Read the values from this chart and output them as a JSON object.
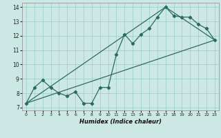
{
  "xlabel": "Humidex (Indice chaleur)",
  "bg_color": "#cce8e4",
  "line_color": "#2a6b62",
  "grid_color": "#99ccc5",
  "xlim": [
    -0.5,
    23.5
  ],
  "ylim": [
    6.8,
    14.3
  ],
  "x_ticks": [
    0,
    1,
    2,
    3,
    4,
    5,
    6,
    7,
    8,
    9,
    10,
    11,
    12,
    13,
    14,
    15,
    16,
    17,
    18,
    19,
    20,
    21,
    22,
    23
  ],
  "y_ticks": [
    7,
    8,
    9,
    10,
    11,
    12,
    13,
    14
  ],
  "line1_x": [
    0,
    1,
    2,
    3,
    4,
    5,
    6,
    7,
    8,
    9,
    10,
    11,
    12,
    13,
    14,
    15,
    16,
    17,
    18,
    19,
    20,
    21,
    22,
    23
  ],
  "line1_y": [
    7.3,
    8.4,
    8.9,
    8.4,
    8.0,
    7.8,
    8.1,
    7.3,
    7.3,
    8.4,
    8.4,
    10.7,
    12.1,
    11.45,
    12.1,
    12.5,
    13.3,
    14.0,
    13.4,
    13.3,
    13.3,
    12.8,
    12.5,
    11.7
  ],
  "line2_x": [
    0,
    23
  ],
  "line2_y": [
    7.3,
    11.7
  ],
  "line3_x": [
    0,
    17,
    23
  ],
  "line3_y": [
    7.3,
    14.0,
    11.7
  ]
}
